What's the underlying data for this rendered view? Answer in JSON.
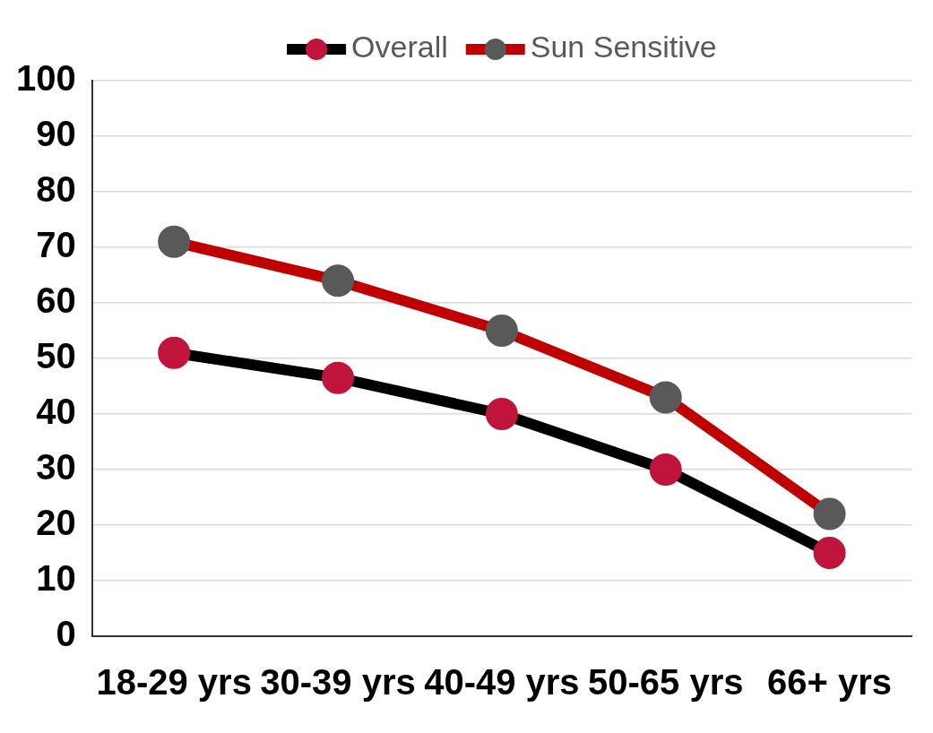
{
  "chart_data": {
    "type": "line",
    "categories": [
      "18-29 yrs",
      "30-39 yrs",
      "40-49 yrs",
      "50-65 yrs",
      "66+ yrs"
    ],
    "series": [
      {
        "name": "Overall",
        "color": "#000000",
        "colors": [
          "#c0143c",
          "#c0143c",
          "#c0143c",
          "#c0143c",
          "#c0143c"
        ],
        "values": [
          51,
          46.5,
          40,
          30,
          15
        ]
      },
      {
        "name": "Sun Sensitive",
        "color": "#c00000",
        "colors": [
          "#595959",
          "#595959",
          "#595959",
          "#595959",
          "#595959"
        ],
        "values": [
          71,
          64,
          55,
          43,
          22
        ]
      }
    ],
    "ylim": [
      0,
      100
    ],
    "yticks": [
      0,
      10,
      20,
      30,
      40,
      50,
      60,
      70,
      80,
      90,
      100
    ],
    "grid": "y",
    "legend": "top",
    "marker": "circle",
    "line_style": "solid"
  }
}
